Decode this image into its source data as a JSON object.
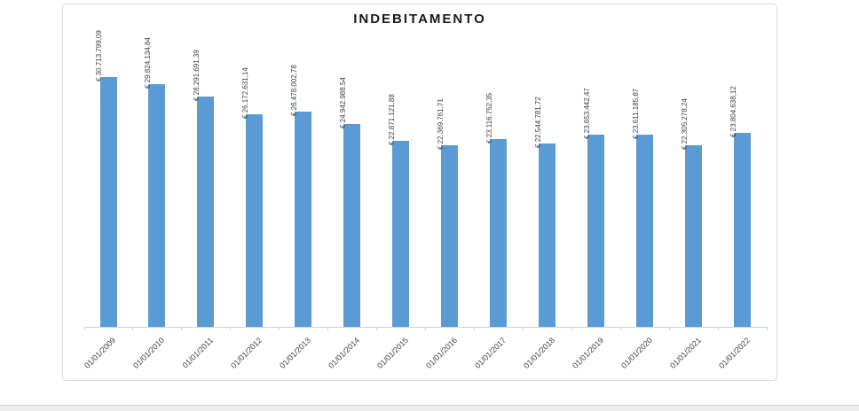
{
  "window": {
    "background_color": "#ffffff",
    "bottom_strip_color": "#ececec"
  },
  "chart_data": {
    "type": "bar",
    "title": "INDEBITAMENTO",
    "xlabel": "",
    "ylabel": "",
    "categories": [
      "01/01/2009",
      "01/01/2010",
      "01/01/2011",
      "01/01/2012",
      "01/01/2013",
      "01/01/2014",
      "01/01/2015",
      "01/01/2016",
      "01/01/2017",
      "01/01/2018",
      "01/01/2019",
      "01/01/2020",
      "01/01/2021",
      "01/01/2022"
    ],
    "values": [
      30713799.09,
      29824134.84,
      28291691.39,
      26172631.14,
      26478002.78,
      24942988.54,
      22871121.88,
      22369761.71,
      23116752.35,
      22544781.72,
      23653442.47,
      23611185.87,
      22305278.24,
      23804638.12
    ],
    "value_labels": [
      "€ 30.713.799,09",
      "€ 29.824.134,84",
      "€ 28.291.691,39",
      "€ 26.172.631,14",
      "€ 26.478.002,78",
      "€ 24.942.988,54",
      "€ 22.871.121,88",
      "€ 22.369.761,71",
      "€ 23.116.752,35",
      "€ 22.544.781,72",
      "€ 23.653.442,47",
      "€ 23.611.185,87",
      "€ 22.305.278,24",
      "€ 23.804.638,12"
    ],
    "ylim": [
      0,
      30713799.09
    ],
    "grid": false,
    "legend": false,
    "bar_color": "#5b9bd5",
    "axis_color": "#c9d5e2",
    "value_label_color": "#404040",
    "category_label_color": "#444444",
    "title_color": "#1a1a1a",
    "value_label_rotation_deg": -90,
    "category_label_rotation_deg": -45
  }
}
